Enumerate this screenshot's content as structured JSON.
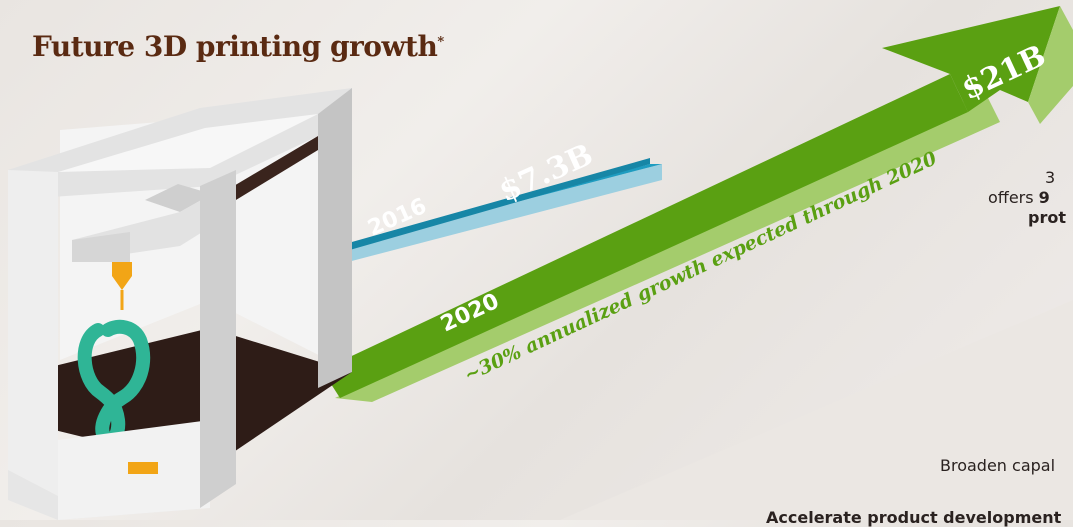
{
  "title": "Future 3D printing growth",
  "title_mark": "*",
  "bar_2016": {
    "year": "2016",
    "value": "$7.3B"
  },
  "arrow_2020": {
    "year": "2020",
    "value": "$21B",
    "growth_note": "~30% annualized growth expected through 2020"
  },
  "side_text": {
    "line1": "3",
    "line2_prefix": "offers ",
    "line2_bold": "9",
    "line3_bold": "prot",
    "item1": "Broaden capal",
    "item2": "Accelerate product development"
  },
  "colors": {
    "title": "#5a2a12",
    "bar_2016_top": "#1e9cc0",
    "bar_2016_side": "#9ccfe0",
    "arrow_top": "#5aa012",
    "arrow_side": "#a4cc6c",
    "printer_frame": "#d9d9d9",
    "printer_dark": "#2e1c17",
    "nozzle": "#f2a516",
    "print_object": "#2fb596"
  },
  "icons": [
    "3d-printer-icon",
    "growth-arrow-icon"
  ]
}
